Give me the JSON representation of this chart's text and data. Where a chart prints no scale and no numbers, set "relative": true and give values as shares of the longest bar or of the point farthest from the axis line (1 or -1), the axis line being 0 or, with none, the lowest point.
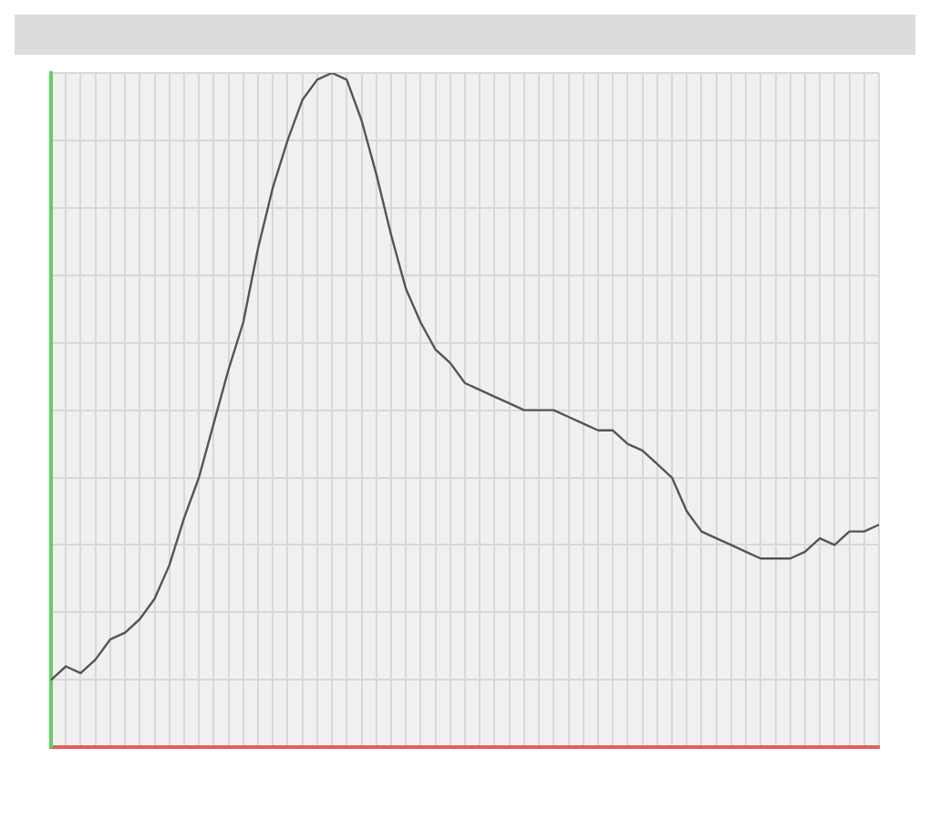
{
  "chart_data": {
    "type": "line",
    "relative": true,
    "grid": true,
    "legend": false,
    "marker": "none",
    "line_style": "solid",
    "categories": [
      null,
      null,
      null,
      null,
      null,
      null,
      null,
      null,
      null,
      null,
      null,
      null,
      null,
      null,
      null,
      null,
      null,
      null,
      null,
      null,
      null,
      null,
      null,
      null,
      null,
      null,
      null,
      null,
      null,
      null,
      null,
      null,
      null,
      null,
      null,
      null,
      null,
      null,
      null,
      null,
      null,
      null,
      null,
      null,
      null,
      null,
      null,
      null,
      null,
      null,
      null,
      null,
      null,
      null,
      null,
      null,
      null
    ],
    "series": [
      {
        "color": "#555555",
        "values": [
          0.1,
          0.12,
          0.11,
          0.13,
          0.16,
          0.17,
          0.19,
          0.22,
          0.27,
          0.34,
          0.4,
          0.48,
          0.56,
          0.63,
          0.74,
          0.83,
          0.9,
          0.96,
          0.99,
          1,
          0.99,
          0.93,
          0.85,
          0.76,
          0.68,
          0.63,
          0.59,
          0.57,
          0.54,
          0.53,
          0.52,
          0.51,
          0.5,
          0.5,
          0.5,
          0.49,
          0.48,
          0.47,
          0.47,
          0.45,
          0.44,
          0.42,
          0.4,
          0.35,
          0.32,
          0.31,
          0.3,
          0.29,
          0.28,
          0.28,
          0.28,
          0.29,
          0.31,
          0.3,
          0.32,
          0.32,
          0.33
        ]
      }
    ]
  }
}
